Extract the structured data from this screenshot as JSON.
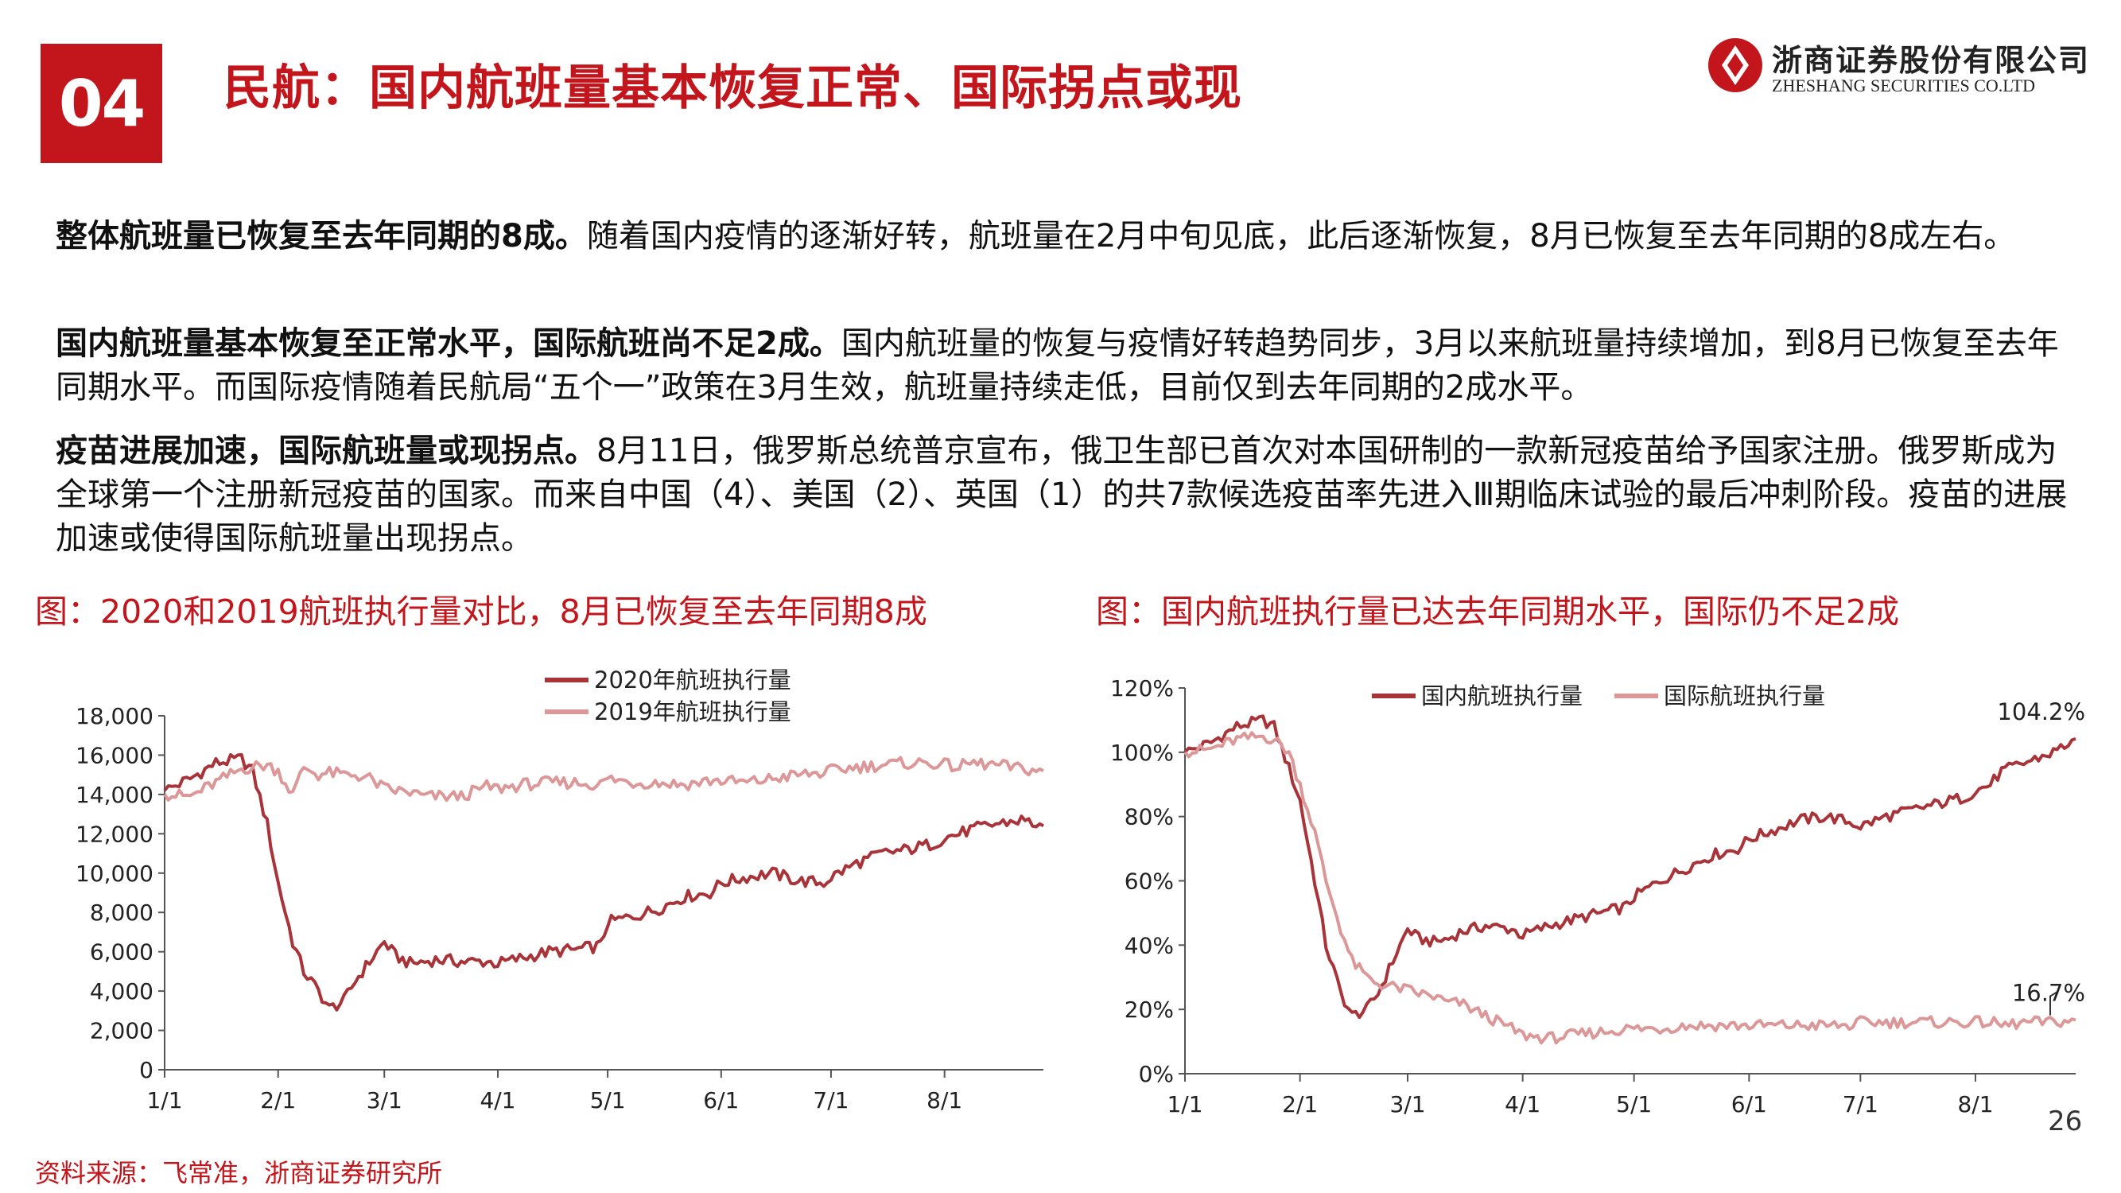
{
  "header": {
    "section_number": "04",
    "title": "民航：国内航班量基本恢复正常、国际拐点或现",
    "logo_cn": "浙商证券股份有限公司",
    "logo_en": "ZHESHANG SECURITIES CO.LTD"
  },
  "paragraphs": [
    {
      "bold": "整体航班量已恢复至去年同期的8成。",
      "text": "随着国内疫情的逐渐好转，航班量在2月中旬见底，此后逐渐恢复，8月已恢复至去年同期的8成左右。"
    },
    {
      "bold": "国内航班量基本恢复至正常水平，国际航班尚不足2成。",
      "text": "国内航班量的恢复与疫情好转趋势同步，3月以来航班量持续增加，到8月已恢复至去年同期水平。而国际疫情随着民航局“五个一”政策在3月生效，航班量持续走低，目前仅到去年同期的2成水平。"
    },
    {
      "bold": "疫苗进展加速，国际航班量或现拐点。",
      "text": "8月11日，俄罗斯总统普京宣布，俄卫生部已首次对本国研制的一款新冠疫苗给予国家注册。俄罗斯成为全球第一个注册新冠疫苗的国家。而来自中国（4）、美国（2）、英国（1）的共7款候选疫苗率先进入Ⅲ期临床试验的最后冲刺阶段。疫苗的进展加速或使得国际航班量出现拐点。"
    }
  ],
  "figures": {
    "left_title": "图：2020和2019航班执行量对比，8月已恢复至去年同期8成",
    "right_title": "图：国内航班执行量已达去年同期水平，国际仍不足2成"
  },
  "colors": {
    "accent": "#c3161c",
    "series_dark": "#a8343a",
    "series_light": "#dc9898"
  },
  "chart_data": [
    {
      "type": "line",
      "title": "",
      "x_tick_labels": [
        "1/1",
        "2/1",
        "3/1",
        "4/1",
        "5/1",
        "6/1",
        "7/1",
        "8/1"
      ],
      "y_tick_labels": [
        "0",
        "2,000",
        "4,000",
        "6,000",
        "8,000",
        "10,000",
        "12,000",
        "14,000",
        "16,000",
        "18,000"
      ],
      "ylim": [
        0,
        18000
      ],
      "legend_position": "top-center",
      "x": [
        "1/1",
        "1/8",
        "1/15",
        "1/22",
        "1/25",
        "1/29",
        "2/1",
        "2/5",
        "2/8",
        "2/12",
        "2/15",
        "2/19",
        "2/22",
        "2/26",
        "3/1",
        "3/4",
        "3/8",
        "3/12",
        "3/15",
        "3/22",
        "3/29",
        "4/1",
        "4/8",
        "4/15",
        "4/22",
        "4/29",
        "5/1",
        "5/8",
        "5/15",
        "5/22",
        "5/29",
        "6/1",
        "6/8",
        "6/15",
        "6/22",
        "6/29",
        "7/1",
        "7/8",
        "7/15",
        "7/22",
        "7/29",
        "8/1",
        "8/5",
        "8/8",
        "8/15",
        "8/22",
        "8/28"
      ],
      "series": [
        {
          "name": "2020年航班执行量",
          "values": [
            14200,
            14800,
            15600,
            15800,
            15200,
            12500,
            9500,
            6500,
            5000,
            4000,
            3100,
            3500,
            4500,
            5500,
            6500,
            5800,
            5400,
            5500,
            5600,
            5500,
            5500,
            5400,
            5700,
            6000,
            6100,
            6300,
            7500,
            7800,
            8200,
            8800,
            9000,
            9500,
            9800,
            10000,
            9600,
            9500,
            9800,
            10500,
            11000,
            11200,
            11500,
            11800,
            12000,
            12200,
            12500,
            12700,
            12400
          ]
        },
        {
          "name": "2019年航班执行量",
          "values": [
            14000,
            13900,
            14600,
            15300,
            15400,
            15500,
            15200,
            14000,
            15400,
            15000,
            15100,
            15000,
            15000,
            14800,
            14300,
            14200,
            14100,
            13900,
            13900,
            13900,
            14400,
            14300,
            14500,
            14600,
            14600,
            14500,
            14800,
            14600,
            14600,
            14500,
            14700,
            14700,
            14600,
            14800,
            15000,
            15100,
            15200,
            15400,
            15500,
            15600,
            15600,
            15500,
            15400,
            15600,
            15500,
            15300,
            15200
          ]
        }
      ]
    },
    {
      "type": "line",
      "title": "",
      "x_tick_labels": [
        "1/1",
        "2/1",
        "3/1",
        "4/1",
        "5/1",
        "6/1",
        "7/1",
        "8/1"
      ],
      "y_tick_labels": [
        "0%",
        "20%",
        "40%",
        "60%",
        "80%",
        "100%",
        "120%"
      ],
      "ylim": [
        0,
        120
      ],
      "legend_position": "top-center",
      "x": [
        "1/1",
        "1/8",
        "1/15",
        "1/22",
        "1/25",
        "1/29",
        "2/1",
        "2/5",
        "2/8",
        "2/12",
        "2/15",
        "2/19",
        "2/22",
        "2/26",
        "3/1",
        "3/4",
        "3/8",
        "3/12",
        "3/15",
        "3/22",
        "3/29",
        "4/1",
        "4/8",
        "4/15",
        "4/22",
        "4/29",
        "5/1",
        "5/8",
        "5/15",
        "5/22",
        "5/29",
        "6/1",
        "6/8",
        "6/15",
        "6/22",
        "6/29",
        "7/1",
        "7/8",
        "7/15",
        "7/22",
        "7/29",
        "8/1",
        "8/5",
        "8/8",
        "8/15",
        "8/22",
        "8/28"
      ],
      "series": [
        {
          "name": "国内航班执行量",
          "values": [
            100,
            103,
            108,
            110,
            108,
            95,
            85,
            60,
            40,
            25,
            18,
            20,
            25,
            35,
            45,
            42,
            41,
            42,
            44,
            46,
            45,
            43,
            46,
            48,
            50,
            52,
            55,
            60,
            64,
            68,
            70,
            73,
            76,
            79,
            80,
            78,
            77,
            80,
            82,
            84,
            86,
            88,
            90,
            94,
            97,
            100,
            104.2
          ]
        },
        {
          "name": "国际航班执行量",
          "values": [
            100,
            101,
            104,
            105,
            104,
            100,
            90,
            75,
            60,
            45,
            35,
            30,
            28,
            27,
            26,
            25,
            24,
            22,
            22,
            18,
            14,
            12,
            11,
            12,
            13,
            14,
            14,
            14,
            15,
            15,
            15,
            15,
            15,
            15,
            15,
            15,
            16,
            16,
            16,
            16,
            16,
            16,
            16,
            15,
            16,
            16,
            16.7
          ]
        }
      ],
      "annotations": [
        "104.2%",
        "16.7%"
      ]
    }
  ],
  "footer": {
    "source": "资料来源：飞常准，浙商证券研究所",
    "page_number": "26"
  }
}
